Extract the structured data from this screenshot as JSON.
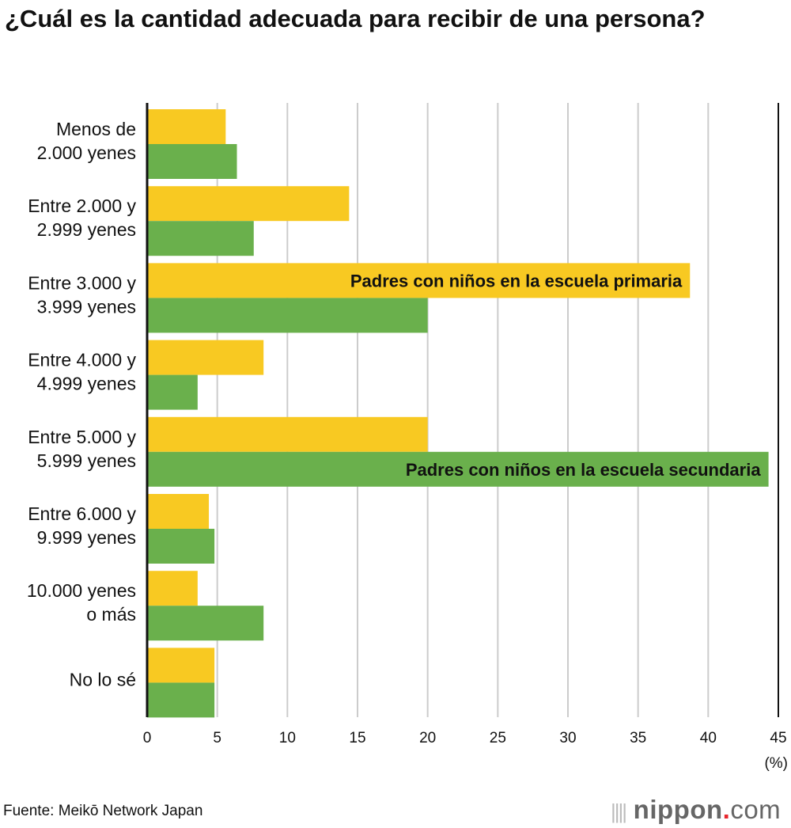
{
  "chart_data": {
    "type": "bar",
    "orientation": "horizontal",
    "title": "¿Cuál es la cantidad adecuada para recibir de una persona?",
    "categories": [
      "Menos de\n2.000 yenes",
      "Entre 2.000 y\n2.999 yenes",
      "Entre 3.000 y\n3.999 yenes",
      "Entre 4.000 y\n4.999 yenes",
      "Entre 5.000 y\n5.999 yenes",
      "Entre 6.000 y\n9.999 yenes",
      "10.000 yenes\no más",
      "No lo sé"
    ],
    "series": [
      {
        "name": "Padres con niños en la escuela primaria",
        "color": "#f8c922",
        "values": [
          5.6,
          14.4,
          38.7,
          8.3,
          20.0,
          4.4,
          3.6,
          4.8
        ]
      },
      {
        "name": "Padres con niños en la escuela secundaria",
        "color": "#6ab04c",
        "values": [
          6.4,
          7.6,
          20.0,
          3.6,
          44.3,
          4.8,
          8.3,
          4.8
        ]
      }
    ],
    "xlabel": "(%)",
    "xlim": [
      0,
      45
    ],
    "xticks": [
      0,
      5,
      10,
      15,
      20,
      25,
      30,
      35,
      40,
      45
    ],
    "grid": true,
    "legend": "inline labels on bars"
  },
  "source": "Fuente: Meikō Network Japan",
  "logo": {
    "text": "nippon.com",
    "accent": "#e8262d"
  }
}
